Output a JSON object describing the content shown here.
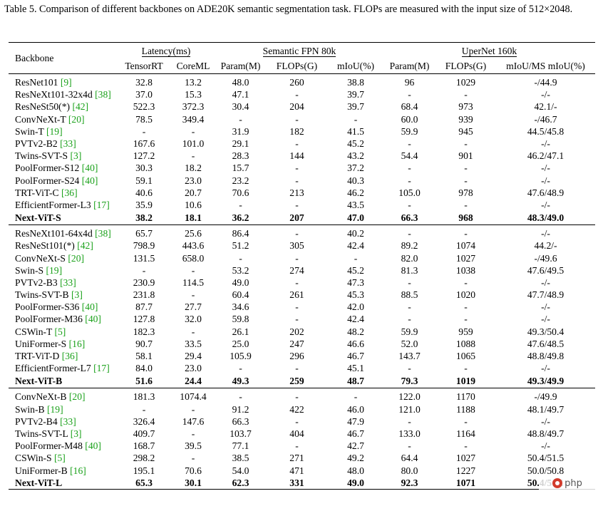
{
  "caption": "Table 5.  Comparison of different backbones on ADE20K semantic segmentation task.  FLOPs are measured with the input size of 512×2048.",
  "headers": {
    "backbone": "Backbone",
    "latency_group": "Latency(ms)",
    "fpn_group": "Semantic FPN 80k",
    "upernet_group": "UperNet 160k",
    "columns": [
      "TensorRT",
      "CoreML",
      "Param(M)",
      "FLOPs(G)",
      "mIoU(%)",
      "Param(M)",
      "FLOPs(G)",
      "mIoU/MS mIoU(%)"
    ]
  },
  "groups": [
    {
      "rows": [
        {
          "name": "ResNet101",
          "ref": "[9]",
          "vals": [
            "32.8",
            "13.2",
            "48.0",
            "260",
            "38.8",
            "96",
            "1029",
            "-/44.9"
          ]
        },
        {
          "name": "ResNeXt101-32x4d",
          "ref": "[38]",
          "vals": [
            "37.0",
            "15.3",
            "47.1",
            "-",
            "39.7",
            "-",
            "-",
            "-/-"
          ]
        },
        {
          "name": "ResNeSt50(*)",
          "ref": "[42]",
          "vals": [
            "522.3",
            "372.3",
            "30.4",
            "204",
            "39.7",
            "68.4",
            "973",
            "42.1/-"
          ]
        },
        {
          "name": "ConvNeXt-T",
          "ref": "[20]",
          "vals": [
            "78.5",
            "349.4",
            "-",
            "-",
            "-",
            "60.0",
            "939",
            "-/46.7"
          ]
        },
        {
          "name": "Swin-T",
          "ref": "[19]",
          "vals": [
            "-",
            "-",
            "31.9",
            "182",
            "41.5",
            "59.9",
            "945",
            "44.5/45.8"
          ]
        },
        {
          "name": "PVTv2-B2",
          "ref": "[33]",
          "vals": [
            "167.6",
            "101.0",
            "29.1",
            "-",
            "45.2",
            "-",
            "-",
            "-/-"
          ]
        },
        {
          "name": "Twins-SVT-S",
          "ref": "[3]",
          "vals": [
            "127.2",
            "-",
            "28.3",
            "144",
            "43.2",
            "54.4",
            "901",
            "46.2/47.1"
          ]
        },
        {
          "name": "PoolFormer-S12",
          "ref": "[40]",
          "vals": [
            "30.3",
            "18.2",
            "15.7",
            "-",
            "37.2",
            "-",
            "-",
            "-/-"
          ]
        },
        {
          "name": "PoolFormer-S24",
          "ref": "[40]",
          "vals": [
            "59.1",
            "23.0",
            "23.2",
            "-",
            "40.3",
            "-",
            "-",
            "-/-"
          ]
        },
        {
          "name": "TRT-ViT-C",
          "ref": "[36]",
          "vals": [
            "40.6",
            "20.7",
            "70.6",
            "213",
            "46.2",
            "105.0",
            "978",
            "47.6/48.9"
          ]
        },
        {
          "name": "EfficientFormer-L3",
          "ref": "[17]",
          "vals": [
            "35.9",
            "10.6",
            "-",
            "-",
            "43.5",
            "-",
            "-",
            "-/-"
          ]
        }
      ],
      "best": {
        "name": "Next-ViT-S",
        "vals": [
          "38.2",
          "18.1",
          "36.2",
          "207",
          "47.0",
          "66.3",
          "968",
          "48.3/49.0"
        ]
      }
    },
    {
      "rows": [
        {
          "name": "ResNeXt101-64x4d",
          "ref": "[38]",
          "vals": [
            "65.7",
            "25.6",
            "86.4",
            "-",
            "40.2",
            "-",
            "-",
            "-/-"
          ]
        },
        {
          "name": "ResNeSt101(*)",
          "ref": "[42]",
          "vals": [
            "798.9",
            "443.6",
            "51.2",
            "305",
            "42.4",
            "89.2",
            "1074",
            "44.2/-"
          ]
        },
        {
          "name": "ConvNeXt-S",
          "ref": "[20]",
          "vals": [
            "131.5",
            "658.0",
            "-",
            "-",
            "-",
            "82.0",
            "1027",
            "-/49.6"
          ]
        },
        {
          "name": "Swin-S",
          "ref": "[19]",
          "vals": [
            "-",
            "-",
            "53.2",
            "274",
            "45.2",
            "81.3",
            "1038",
            "47.6/49.5"
          ]
        },
        {
          "name": "PVTv2-B3",
          "ref": "[33]",
          "vals": [
            "230.9",
            "114.5",
            "49.0",
            "-",
            "47.3",
            "-",
            "-",
            "-/-"
          ]
        },
        {
          "name": "Twins-SVT-B",
          "ref": "[3]",
          "vals": [
            "231.8",
            "-",
            "60.4",
            "261",
            "45.3",
            "88.5",
            "1020",
            "47.7/48.9"
          ]
        },
        {
          "name": "PoolFormer-S36",
          "ref": "[40]",
          "vals": [
            "87.7",
            "27.7",
            "34.6",
            "-",
            "42.0",
            "-",
            "-",
            "-/-"
          ]
        },
        {
          "name": "PoolFormer-M36",
          "ref": "[40]",
          "vals": [
            "127.8",
            "32.0",
            "59.8",
            "-",
            "42.4",
            "-",
            "-",
            "-/-"
          ]
        },
        {
          "name": "CSWin-T",
          "ref": "[5]",
          "vals": [
            "182.3",
            "-",
            "26.1",
            "202",
            "48.2",
            "59.9",
            "959",
            "49.3/50.4"
          ]
        },
        {
          "name": "UniFormer-S",
          "ref": "[16]",
          "vals": [
            "90.7",
            "33.5",
            "25.0",
            "247",
            "46.6",
            "52.0",
            "1088",
            "47.6/48.5"
          ]
        },
        {
          "name": "TRT-ViT-D",
          "ref": "[36]",
          "vals": [
            "58.1",
            "29.4",
            "105.9",
            "296",
            "46.7",
            "143.7",
            "1065",
            "48.8/49.8"
          ]
        },
        {
          "name": "EfficientFormer-L7",
          "ref": "[17]",
          "vals": [
            "84.0",
            "23.0",
            "-",
            "-",
            "45.1",
            "-",
            "-",
            "-/-"
          ]
        }
      ],
      "best": {
        "name": "Next-ViT-B",
        "vals": [
          "51.6",
          "24.4",
          "49.3",
          "259",
          "48.7",
          "79.3",
          "1019",
          "49.3/49.9"
        ]
      }
    },
    {
      "rows": [
        {
          "name": "ConvNeXt-B",
          "ref": "[20]",
          "vals": [
            "181.3",
            "1074.4",
            "-",
            "-",
            "-",
            "122.0",
            "1170",
            "-/49.9"
          ]
        },
        {
          "name": "Swin-B",
          "ref": "[19]",
          "vals": [
            "-",
            "-",
            "91.2",
            "422",
            "46.0",
            "121.0",
            "1188",
            "48.1/49.7"
          ]
        },
        {
          "name": "PVTv2-B4",
          "ref": "[33]",
          "vals": [
            "326.4",
            "147.6",
            "66.3",
            "-",
            "47.9",
            "-",
            "-",
            "-/-"
          ]
        },
        {
          "name": "Twins-SVT-L",
          "ref": "[3]",
          "vals": [
            "409.7",
            "-",
            "103.7",
            "404",
            "46.7",
            "133.0",
            "1164",
            "48.8/49.7"
          ]
        },
        {
          "name": "PoolFormer-M48",
          "ref": "[40]",
          "vals": [
            "168.7",
            "39.5",
            "77.1",
            "-",
            "42.7",
            "-",
            "-",
            "-/-"
          ]
        },
        {
          "name": "CSWin-S",
          "ref": "[5]",
          "vals": [
            "298.2",
            "-",
            "38.5",
            "271",
            "49.2",
            "64.4",
            "1027",
            "50.4/51.5"
          ]
        },
        {
          "name": "UniFormer-B",
          "ref": "[16]",
          "vals": [
            "195.1",
            "70.6",
            "54.0",
            "471",
            "48.0",
            "80.0",
            "1227",
            "50.0/50.8"
          ]
        }
      ],
      "best": {
        "name": "Next-ViT-L",
        "vals": [
          "65.3",
          "30.1",
          "62.3",
          "331",
          "49.0",
          "92.3",
          "1071",
          "50.4/51.1"
        ]
      }
    }
  ],
  "watermark": {
    "text": "php",
    "icon": "logo-icon"
  }
}
